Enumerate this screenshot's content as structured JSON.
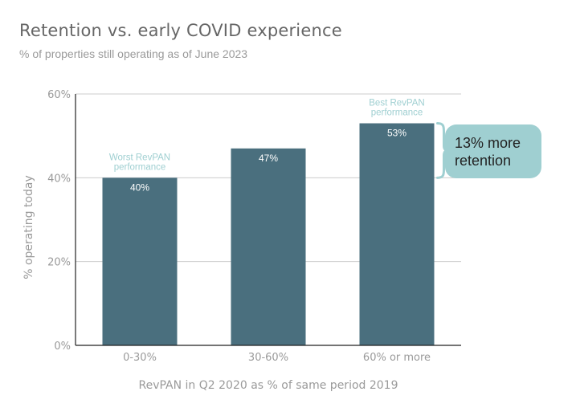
{
  "chart_data": {
    "type": "bar",
    "title": "Retention vs. early COVID experience",
    "subtitle": "% of properties still operating as of June 2023",
    "xlabel": "RevPAN in Q2 2020 as % of same period 2019",
    "ylabel": "% operating today",
    "categories": [
      "0-30%",
      "30-60%",
      "60% or more"
    ],
    "values": [
      40,
      47,
      53
    ],
    "value_labels": [
      "40%",
      "47%",
      "53%"
    ],
    "ylim": [
      0,
      60
    ],
    "yticks": [
      0,
      20,
      40,
      60
    ],
    "ytick_labels": [
      "0%",
      "20%",
      "40%",
      "60%"
    ],
    "grid": true,
    "bar_color": "#4a6f7e",
    "annotations": [
      {
        "category_index": 0,
        "lines": [
          "Worst RevPAN",
          "performance"
        ],
        "color": "#9fcfd1"
      },
      {
        "category_index": 2,
        "lines": [
          "Best RevPAN",
          "performance"
        ],
        "color": "#9fcfd1"
      }
    ],
    "callout": {
      "lines": [
        "13% more",
        "retention"
      ],
      "bracket_from": 40,
      "bracket_to": 53,
      "fill": "#9fcfd1",
      "text_color": "#222222"
    }
  }
}
